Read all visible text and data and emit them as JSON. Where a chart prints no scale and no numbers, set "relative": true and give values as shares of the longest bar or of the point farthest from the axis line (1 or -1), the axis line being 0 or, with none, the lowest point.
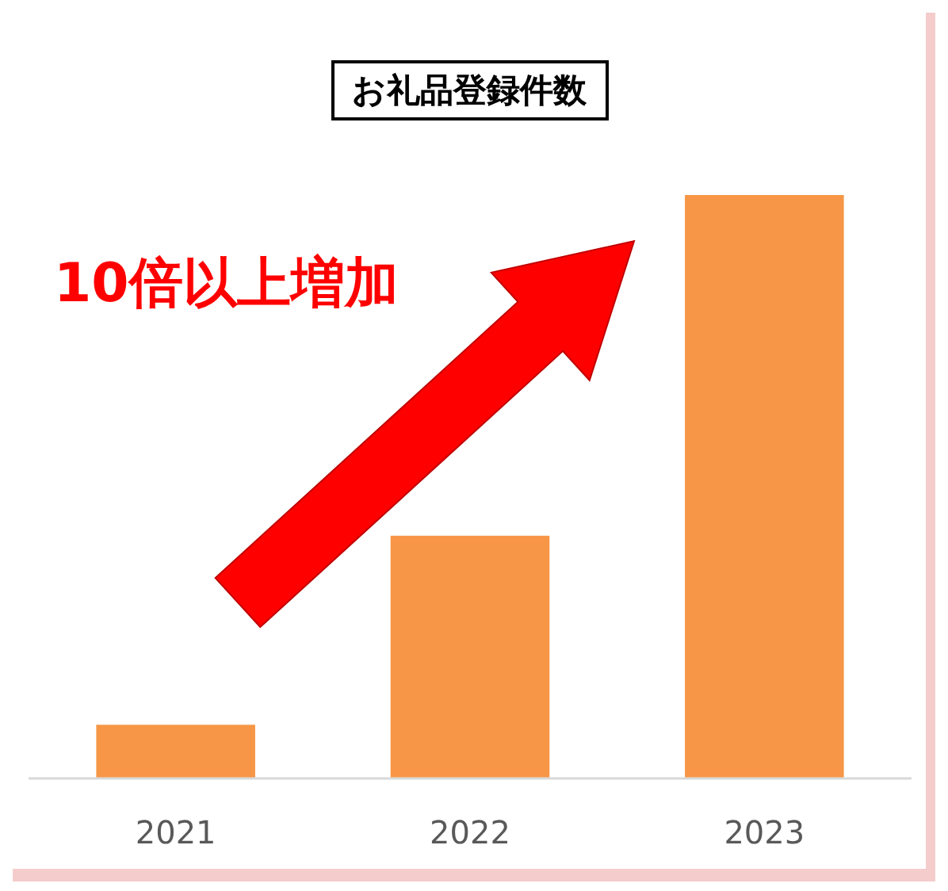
{
  "chart_data": {
    "type": "bar",
    "title": "お礼品登録件数",
    "categories": [
      "2021",
      "2022",
      "2023"
    ],
    "values": [
      0.092,
      0.416,
      1
    ],
    "color": "#f79646",
    "relative": true,
    "annotations": [
      "10倍以上増加"
    ]
  }
}
